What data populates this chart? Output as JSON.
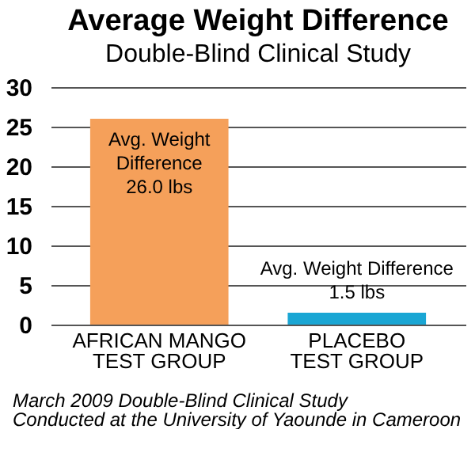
{
  "chart_data": {
    "type": "bar",
    "title": "Average Weight Difference",
    "subtitle": "Double-Blind Clinical Study",
    "categories": [
      "AFRICAN MANGO\nTEST GROUP",
      "PLACEBO\nTEST GROUP"
    ],
    "values": [
      26.0,
      1.5
    ],
    "colors": [
      "#f5a05a",
      "#1aa6d4"
    ],
    "value_labels": [
      "Avg. Weight\nDifference\n26.0 lbs",
      "Avg. Weight Difference\n1.5 lbs"
    ],
    "ylim": [
      0,
      30
    ],
    "yticks": [
      0,
      5,
      10,
      15,
      20,
      25,
      30
    ],
    "grid": "y",
    "legend": false,
    "annotations": [
      "March 2009 Double-Blind Clinical Study",
      "Conducted at the University of Yaounde in Cameroon"
    ]
  }
}
